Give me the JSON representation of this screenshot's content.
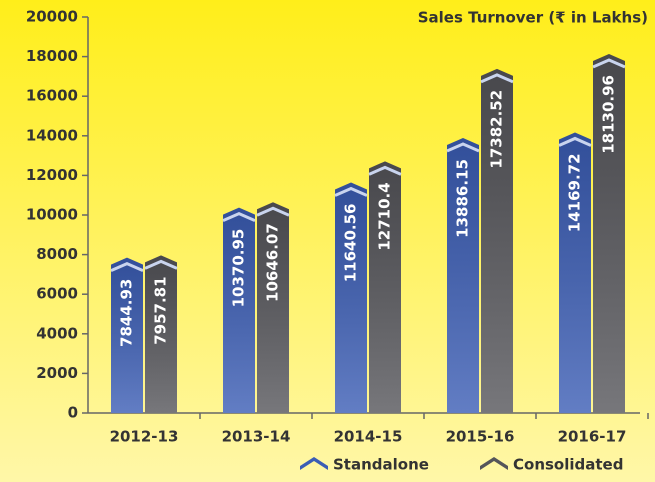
{
  "chart_data": {
    "type": "bar",
    "title": "Sales Turnover (₹ in Lakhs)",
    "categories": [
      "2012-13",
      "2013-14",
      "2014-15",
      "2015-16",
      "2016-17"
    ],
    "series": [
      {
        "name": "Standalone",
        "color": "#3b5db5",
        "values": [
          7844.93,
          10370.95,
          11640.56,
          13886.15,
          14169.72
        ]
      },
      {
        "name": "Consolidated",
        "color": "#55555a",
        "values": [
          7957.81,
          10646.07,
          12710.4,
          17382.52,
          18130.96
        ]
      }
    ],
    "ylim": [
      0,
      20000
    ],
    "yticks": [
      0,
      2000,
      4000,
      6000,
      8000,
      10000,
      12000,
      14000,
      16000,
      18000,
      20000
    ],
    "grid": false,
    "legend": "bottom"
  }
}
